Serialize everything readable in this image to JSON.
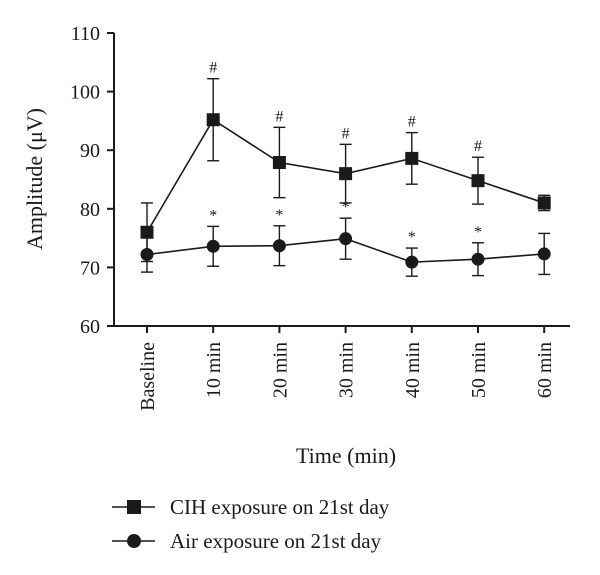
{
  "chart_data": {
    "type": "line",
    "xlabel": "Time (min)",
    "ylabel": "Amplitude (μV)",
    "ylim": [
      60,
      110
    ],
    "yticks": [
      60,
      70,
      80,
      90,
      100,
      110
    ],
    "categories": [
      "Baseline",
      "10 min",
      "20 min",
      "30 min",
      "40 min",
      "50 min",
      "60 min"
    ],
    "grid": false,
    "legend_position": "bottom",
    "series": [
      {
        "name": "CIH exposure on 21st day",
        "marker": "square",
        "values": [
          76,
          95.2,
          87.9,
          86,
          88.6,
          84.8,
          81
        ],
        "error": [
          5,
          7,
          6,
          5,
          4.4,
          4,
          1.3
        ],
        "significance": [
          "",
          "#",
          "#",
          "#",
          "#",
          "#",
          ""
        ]
      },
      {
        "name": "Air exposure on 21st day",
        "marker": "circle",
        "values": [
          72.2,
          73.6,
          73.7,
          74.9,
          70.9,
          71.4,
          72.3
        ],
        "error": [
          3,
          3.4,
          3.4,
          3.5,
          2.4,
          2.8,
          3.5
        ],
        "significance": [
          "",
          "*",
          "*",
          "*",
          "*",
          "*",
          ""
        ]
      }
    ]
  }
}
